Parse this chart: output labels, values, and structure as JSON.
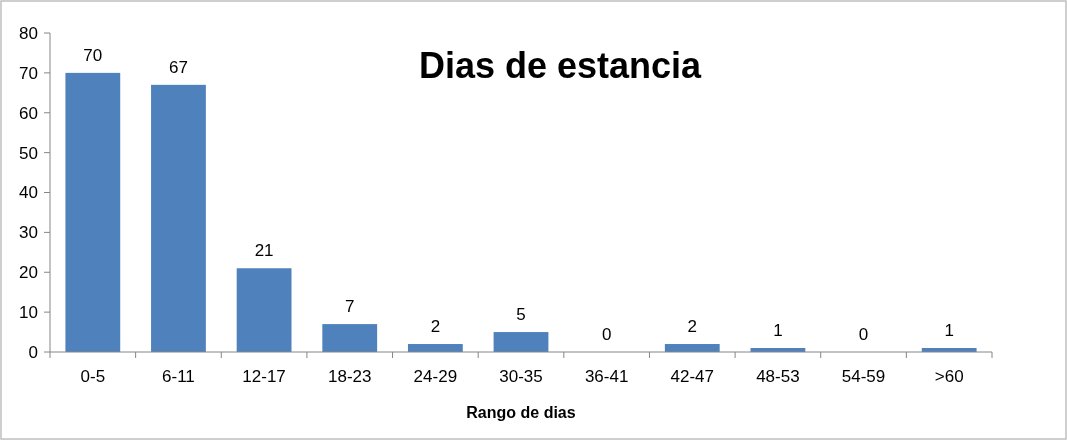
{
  "chart_data": {
    "type": "bar",
    "title": "Dias de estancia",
    "xlabel": "Rango de dias",
    "categories": [
      "0-5",
      "6-11",
      "12-17",
      "18-23",
      "24-29",
      "30-35",
      "36-41",
      "42-47",
      "48-53",
      "54-59",
      ">60"
    ],
    "values": [
      70,
      67,
      21,
      7,
      2,
      5,
      0,
      2,
      1,
      0,
      1
    ],
    "color": "#4f81bd",
    "ylim": [
      0,
      80
    ],
    "yticks": [
      0,
      10,
      20,
      30,
      40,
      50,
      60,
      70,
      80
    ],
    "grid": false,
    "data_labels": true
  }
}
